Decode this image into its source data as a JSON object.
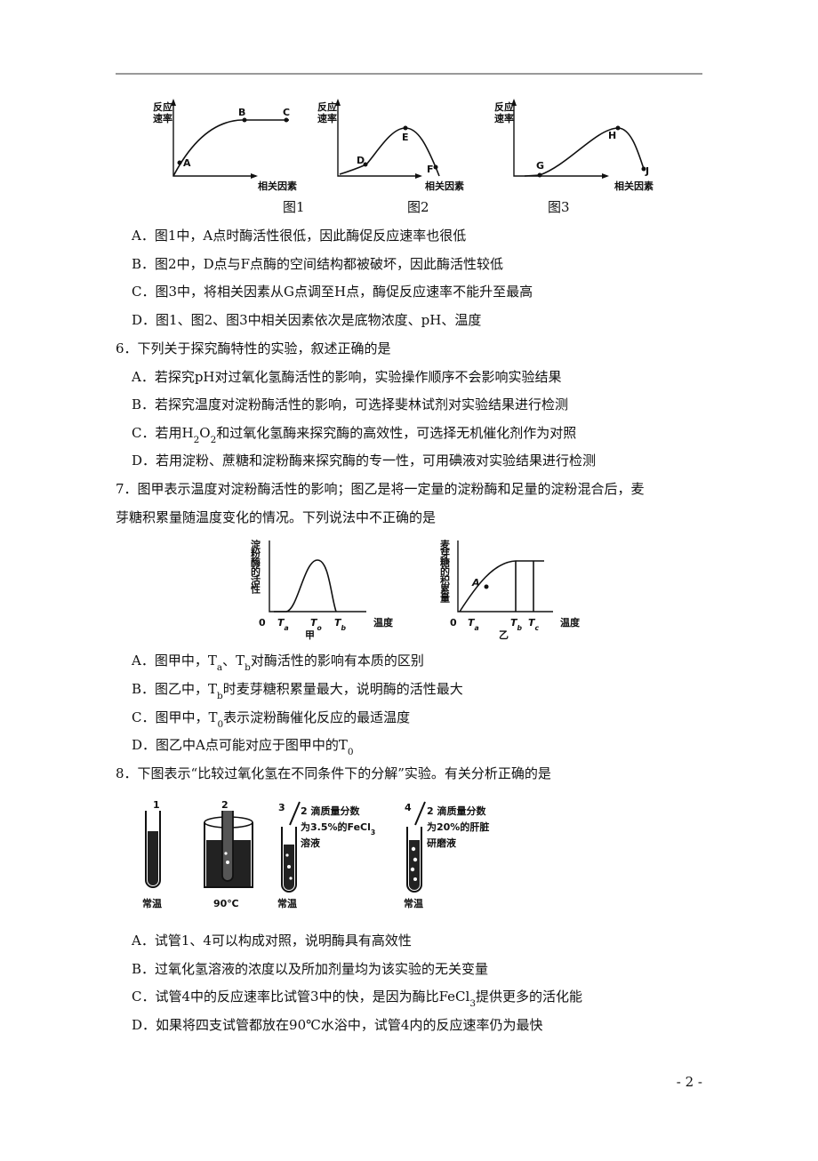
{
  "figures_1_3": {
    "panels": [
      {
        "y_label": [
          "反应",
          "速率"
        ],
        "x_label": "相关因素",
        "points": [
          "A",
          "B",
          "C"
        ],
        "caption": "图1"
      },
      {
        "y_label": [
          "反应",
          "速率"
        ],
        "x_label": "相关因素",
        "points": [
          "D",
          "E",
          "F"
        ],
        "caption": "图2"
      },
      {
        "y_label": [
          "反应",
          "速率"
        ],
        "x_label": "相关因素",
        "points": [
          "G",
          "H",
          "J"
        ],
        "caption": "图3"
      }
    ]
  },
  "q5": {
    "options": [
      [
        "A．图1中，A点时酶活性很低，因此酶促反应速率也很低"
      ],
      [
        "B．图2中，D点与F点酶的空间结构都被破坏，因此酶活性较低"
      ],
      [
        "C．图3中，将相关因素从G点调至H点，酶促反应速率不能升至最高"
      ],
      [
        "D．图1、图2、图3中相关因素依次是底物浓度、pH、温度"
      ]
    ]
  },
  "q6": {
    "stem": [
      [
        "6．下列关于探究酶特性的实验，叙述正确的是"
      ]
    ],
    "options": [
      [
        "A．若探究pH对过氧化氢酶活性的影响，实验操作顺序不会影响实验结果"
      ],
      [
        "B．若探究温度对淀粉酶活性的影响，可选择斐林试剂对实验结果进行检测"
      ],
      [
        "C．若用H",
        "2",
        "O",
        "2",
        "和过氧化氢酶来探究酶的高效性，可选择无机催化剂作为对照"
      ],
      [
        "D．若用淀粉、蔗糖和淀粉酶来探究酶的专一性，可用碘液对实验结果进行检测"
      ]
    ]
  },
  "q7": {
    "stem": [
      [
        "7．图甲表示温度对淀粉酶活性的影响；图乙是将一定量的淀粉酶和足量的淀粉混合后，麦"
      ],
      [
        "芽糖积累量随温度变化的情况。下列说法中不正确的是"
      ]
    ],
    "figures": {
      "jia": {
        "y_label": "淀粉酶的活性",
        "origin": "0",
        "ticks": [
          [
            "T",
            "a"
          ],
          [
            "T",
            "o"
          ],
          [
            "T",
            "b"
          ]
        ],
        "x_label": "温度",
        "caption": "甲"
      },
      "yi": {
        "y_label": "麦芽糖的积累量",
        "origin": "0",
        "ticks": [
          [
            "T",
            "a"
          ],
          [
            "T",
            "b"
          ],
          [
            "T",
            "c"
          ]
        ],
        "x_label": "温度",
        "caption": "乙",
        "point": "A"
      }
    },
    "options": [
      [
        "A．图甲中，T",
        "a",
        "、T",
        "b",
        "对酶活性的影响有本质的区别"
      ],
      [
        "B．图乙中，T",
        "b",
        "时麦芽糖积累量最大，说明酶的活性最大"
      ],
      [
        "C．图甲中，T",
        "0",
        "表示淀粉酶催化反应的最适温度"
      ],
      [
        "D．图乙中A点可能对应于图甲中的T",
        "0"
      ]
    ]
  },
  "q8": {
    "stem": [
      [
        "8．下图表示“比较过氧化氢在不同条件下的分解”实验。有关分析正确的是"
      ]
    ],
    "figure": {
      "tubes": [
        {
          "number": "1",
          "condition": "常温"
        },
        {
          "number": "2",
          "condition": "90℃"
        },
        {
          "number": "3",
          "label": [
            [
              "2 滴质量分数"
            ],
            [
              "为3.5%的FeCl",
              "3"
            ],
            [
              "溶液"
            ]
          ],
          "condition": "常温"
        },
        {
          "number": "4",
          "label": [
            [
              "2 滴质量分数"
            ],
            [
              "为20%的肝脏"
            ],
            [
              "研磨液"
            ]
          ],
          "condition": "常温"
        }
      ]
    },
    "options": [
      [
        "A．试管1、4可以构成对照，说明酶具有高效性"
      ],
      [
        "B．过氧化氢溶液的浓度以及所加剂量均为该实验的无关变量"
      ],
      [
        "C．试管4中的反应速率比试管3中的快，是因为酶比FeCl",
        "3",
        "提供更多的活化能"
      ],
      [
        "D．如果将四支试管都放在90℃水浴中，试管4内的反应速率仍为最快"
      ]
    ]
  },
  "page_number": "- 2 -"
}
